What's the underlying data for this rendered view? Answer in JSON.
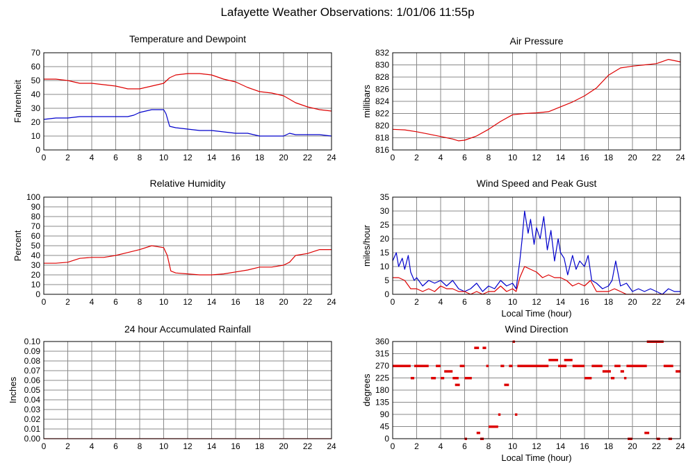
{
  "page": {
    "title": "Lafayette Weather Observations: 1/01/06 11:55p"
  },
  "colors": {
    "series_red": "#dd0000",
    "series_blue": "#0000cc",
    "grid": "#888888",
    "frame": "#000000"
  },
  "chart_data": [
    {
      "id": "temp",
      "type": "line",
      "title": "Temperature and Dewpoint",
      "xlabel": "",
      "ylabel": "Fahrenheit",
      "xlim": [
        0,
        24
      ],
      "ylim": [
        0,
        70
      ],
      "xticks": [
        0,
        2,
        4,
        6,
        8,
        10,
        12,
        14,
        16,
        18,
        20,
        22,
        24
      ],
      "yticks": [
        0,
        10,
        20,
        30,
        40,
        50,
        60,
        70
      ],
      "grid": true,
      "series": [
        {
          "color": "#dd0000",
          "x": [
            0,
            1,
            2,
            3,
            4,
            5,
            6,
            7,
            8,
            9,
            10,
            10.5,
            11,
            12,
            13,
            14,
            15,
            16,
            17,
            18,
            19,
            20,
            21,
            22,
            23,
            24
          ],
          "y": [
            51,
            51,
            50,
            48,
            48,
            47,
            46,
            44,
            44,
            46,
            48,
            52,
            54,
            55,
            55,
            54,
            51,
            49,
            45,
            42,
            41,
            39,
            34,
            31,
            29,
            28
          ]
        },
        {
          "color": "#0000cc",
          "x": [
            0,
            1,
            2,
            3,
            4,
            5,
            6,
            7,
            7.5,
            8,
            9,
            10,
            10.2,
            10.5,
            11,
            12,
            13,
            14,
            15,
            16,
            17,
            18,
            19,
            20,
            20.5,
            21,
            22,
            23,
            24
          ],
          "y": [
            22,
            23,
            23,
            24,
            24,
            24,
            24,
            24,
            25,
            27,
            29,
            29,
            26,
            17,
            16,
            15,
            14,
            14,
            13,
            12,
            12,
            10,
            10,
            10,
            12,
            11,
            11,
            11,
            10
          ]
        }
      ]
    },
    {
      "id": "pressure",
      "type": "line",
      "title": "Air Pressure",
      "xlabel": "",
      "ylabel": "millibars",
      "xlim": [
        0,
        24
      ],
      "ylim": [
        816,
        832
      ],
      "xticks": [
        0,
        2,
        4,
        6,
        8,
        10,
        12,
        14,
        16,
        18,
        20,
        22,
        24
      ],
      "yticks": [
        816,
        818,
        820,
        822,
        824,
        826,
        828,
        830,
        832
      ],
      "grid": true,
      "series": [
        {
          "color": "#dd0000",
          "x": [
            0,
            1,
            2,
            3,
            4,
            5,
            5.5,
            6,
            7,
            8,
            9,
            10,
            11,
            12,
            13,
            14,
            15,
            16,
            17,
            18,
            19,
            20,
            21,
            22,
            23,
            24
          ],
          "y": [
            819.4,
            819.3,
            819,
            818.6,
            818.2,
            817.8,
            817.5,
            817.6,
            818.3,
            819.4,
            820.7,
            821.8,
            822,
            822.1,
            822.3,
            823.1,
            823.9,
            824.9,
            826.2,
            828.3,
            829.5,
            829.8,
            830,
            830.2,
            830.9,
            830.5
          ]
        }
      ]
    },
    {
      "id": "humidity",
      "type": "line",
      "title": "Relative Humidity",
      "xlabel": "",
      "ylabel": "Percent",
      "xlim": [
        0,
        24
      ],
      "ylim": [
        0,
        100
      ],
      "xticks": [
        0,
        2,
        4,
        6,
        8,
        10,
        12,
        14,
        16,
        18,
        20,
        22,
        24
      ],
      "yticks": [
        0,
        10,
        20,
        30,
        40,
        50,
        60,
        70,
        80,
        90,
        100
      ],
      "grid": true,
      "series": [
        {
          "color": "#dd0000",
          "x": [
            0,
            1,
            2,
            3,
            4,
            5,
            6,
            7,
            8,
            9,
            10,
            10.3,
            10.6,
            11,
            12,
            13,
            14,
            15,
            16,
            17,
            18,
            19,
            20,
            20.5,
            21,
            22,
            23,
            24
          ],
          "y": [
            32,
            32,
            33,
            37,
            38,
            38,
            40,
            43,
            46,
            50,
            48,
            40,
            24,
            22,
            21,
            20,
            20,
            21,
            23,
            25,
            28,
            28,
            30,
            33,
            40,
            42,
            46,
            46
          ]
        }
      ]
    },
    {
      "id": "wind",
      "type": "line",
      "title": "Wind Speed and Peak Gust",
      "xlabel": "Local Time (hour)",
      "ylabel": "miles/hour",
      "xlim": [
        0,
        24
      ],
      "ylim": [
        0,
        35
      ],
      "xticks": [
        0,
        2,
        4,
        6,
        8,
        10,
        12,
        14,
        16,
        18,
        20,
        22,
        24
      ],
      "yticks": [
        0,
        5,
        10,
        15,
        20,
        25,
        30,
        35
      ],
      "grid": true,
      "series": [
        {
          "color": "#0000cc",
          "x": [
            0,
            0.3,
            0.5,
            0.8,
            1,
            1.3,
            1.5,
            1.8,
            2,
            2.5,
            3,
            3.5,
            4,
            4.5,
            5,
            5.5,
            6,
            6.5,
            7,
            7.5,
            8,
            8.5,
            9,
            9.5,
            10,
            10.3,
            10.6,
            10.8,
            11,
            11.3,
            11.5,
            11.8,
            12,
            12.3,
            12.6,
            12.9,
            13.2,
            13.5,
            13.8,
            14,
            14.3,
            14.6,
            15,
            15.3,
            15.6,
            16,
            16.3,
            16.6,
            17,
            17.5,
            18,
            18.3,
            18.6,
            19,
            19.5,
            20,
            20.5,
            21,
            21.5,
            22,
            22.5,
            23,
            23.5,
            24
          ],
          "y": [
            12,
            15,
            10,
            13,
            9,
            14,
            8,
            5,
            6,
            3,
            5,
            4,
            5,
            3,
            5,
            2,
            1,
            2,
            4,
            1,
            3,
            2,
            5,
            3,
            4,
            2,
            12,
            20,
            30,
            22,
            27,
            18,
            24,
            20,
            28,
            16,
            23,
            12,
            20,
            15,
            13,
            7,
            14,
            9,
            12,
            10,
            14,
            5,
            4,
            2,
            3,
            5,
            12,
            3,
            4,
            1,
            2,
            1,
            2,
            1,
            0,
            2,
            1,
            1
          ]
        },
        {
          "color": "#dd0000",
          "x": [
            0,
            0.5,
            1,
            1.5,
            2,
            2.5,
            3,
            3.5,
            4,
            4.5,
            5,
            5.5,
            6,
            6.5,
            7,
            7.5,
            8,
            8.5,
            9,
            9.5,
            10,
            10.3,
            10.6,
            11,
            11.5,
            12,
            12.5,
            13,
            13.5,
            14,
            14.5,
            15,
            15.5,
            16,
            16.5,
            17,
            17.5,
            18,
            18.5,
            19,
            19.5,
            20,
            21,
            22,
            23,
            24
          ],
          "y": [
            6,
            6,
            5,
            2,
            2,
            1,
            2,
            1,
            3,
            2,
            2,
            1,
            1,
            0,
            1,
            0,
            1,
            1,
            3,
            1,
            2,
            1,
            6,
            10,
            9,
            8,
            6,
            7,
            6,
            6,
            5,
            3,
            4,
            3,
            5,
            1,
            1,
            1,
            2,
            1,
            0,
            0,
            0,
            0,
            0,
            0
          ]
        }
      ]
    },
    {
      "id": "rain",
      "type": "line",
      "title": "24 hour Accumulated Rainfall",
      "xlabel": "",
      "ylabel": "Inches",
      "xlim": [
        0,
        24
      ],
      "ylim": [
        0,
        0.1
      ],
      "xticks": [
        0,
        2,
        4,
        6,
        8,
        10,
        12,
        14,
        16,
        18,
        20,
        22,
        24
      ],
      "yticks": [
        "0.00",
        "0.01",
        "0.02",
        "0.03",
        "0.04",
        "0.05",
        "0.06",
        "0.07",
        "0.08",
        "0.09",
        "0.10"
      ],
      "grid": true,
      "series": [
        {
          "color": "#dd0000",
          "x": [
            0,
            24
          ],
          "y": [
            0,
            0
          ]
        }
      ]
    },
    {
      "id": "direction",
      "type": "scatter",
      "title": "Wind Direction",
      "xlabel": "Local Time (hour)",
      "ylabel": "degrees",
      "xlim": [
        0,
        24
      ],
      "ylim": [
        0,
        360
      ],
      "xticks": [
        0,
        2,
        4,
        6,
        8,
        10,
        12,
        14,
        16,
        18,
        20,
        22,
        24
      ],
      "yticks": [
        0,
        45,
        90,
        135,
        180,
        225,
        270,
        315,
        360
      ],
      "grid": true,
      "series": [
        {
          "color": "#dd0000",
          "segments": [
            [
              0,
              1.5,
              270
            ],
            [
              1.5,
              1.8,
              225
            ],
            [
              1.8,
              3.0,
              270
            ],
            [
              3.2,
              3.6,
              225
            ],
            [
              3.6,
              4.0,
              270
            ],
            [
              4.0,
              4.3,
              225
            ],
            [
              4.3,
              5.0,
              250
            ],
            [
              5.0,
              5.5,
              225
            ],
            [
              5.2,
              5.6,
              200
            ],
            [
              5.6,
              6.0,
              270
            ],
            [
              6.0,
              6.6,
              225
            ],
            [
              6.0,
              6.2,
              0
            ],
            [
              6.8,
              7.2,
              337
            ],
            [
              7.0,
              7.3,
              22
            ],
            [
              7.3,
              7.6,
              0
            ],
            [
              7.5,
              7.8,
              337
            ],
            [
              7.8,
              8.0,
              270
            ],
            [
              8.0,
              8.8,
              45
            ],
            [
              8.8,
              9.0,
              90
            ],
            [
              9.0,
              9.3,
              270
            ],
            [
              9.3,
              9.7,
              200
            ],
            [
              9.7,
              10.0,
              270
            ],
            [
              10.0,
              10.2,
              360
            ],
            [
              10.2,
              10.4,
              90
            ],
            [
              10.4,
              13.0,
              270
            ],
            [
              13.0,
              13.8,
              292
            ],
            [
              13.8,
              14.5,
              270
            ],
            [
              14.3,
              15.0,
              292
            ],
            [
              15.0,
              16.0,
              270
            ],
            [
              16.0,
              16.6,
              225
            ],
            [
              16.6,
              17.5,
              270
            ],
            [
              17.5,
              18.2,
              250
            ],
            [
              18.2,
              18.5,
              225
            ],
            [
              18.5,
              19.0,
              270
            ],
            [
              19.0,
              19.3,
              250
            ],
            [
              19.3,
              19.5,
              225
            ],
            [
              19.5,
              21.2,
              270
            ],
            [
              19.6,
              20.0,
              0
            ],
            [
              21.0,
              21.4,
              22
            ],
            [
              21.2,
              22.6,
              360
            ],
            [
              22.0,
              22.3,
              0
            ],
            [
              22.6,
              23.4,
              270
            ],
            [
              23.0,
              23.3,
              0
            ],
            [
              23.6,
              24.0,
              250
            ]
          ]
        }
      ]
    }
  ]
}
